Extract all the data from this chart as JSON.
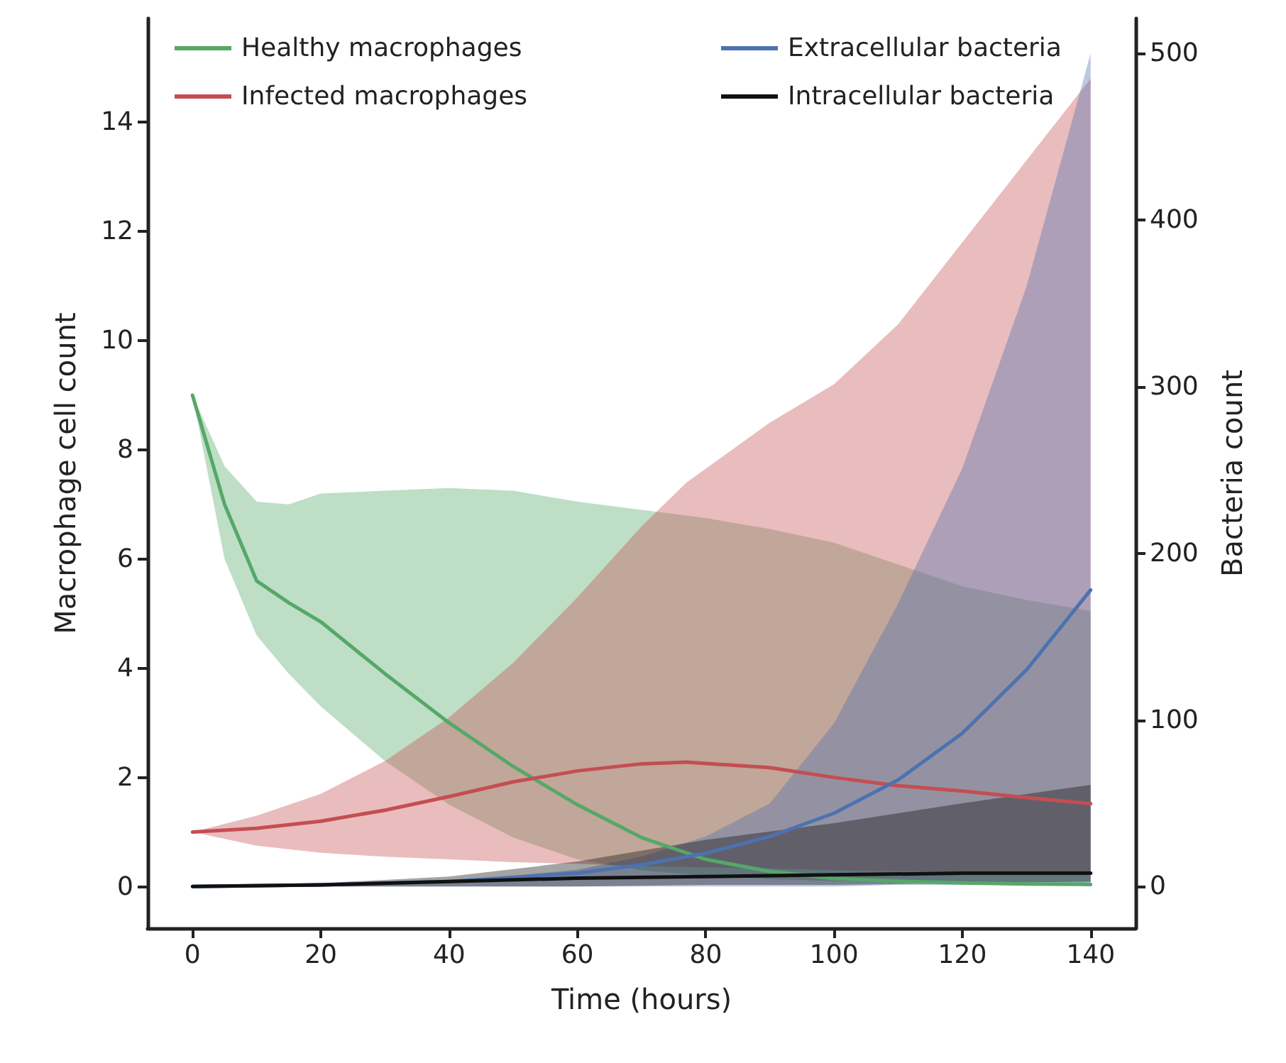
{
  "chart_data": {
    "type": "line",
    "xlabel": "Time (hours)",
    "ylabel": "Macrophage cell count",
    "y2label": "Bacteria count",
    "xlim": [
      -7,
      147
    ],
    "xticks": [
      0,
      20,
      40,
      60,
      80,
      100,
      120,
      140
    ],
    "ylim": [
      -0.76,
      15.9
    ],
    "yticks": [
      0,
      2,
      4,
      6,
      8,
      10,
      12,
      14
    ],
    "y2lim": [
      -25,
      521
    ],
    "y2ticks": [
      0,
      100,
      200,
      300,
      400,
      500
    ],
    "grid": false,
    "legend": "top",
    "marker": "none",
    "line_style": "solid",
    "series": [
      {
        "name": "Healthy macrophages",
        "color": "#55a868",
        "x": [
          0,
          5,
          10,
          15,
          20,
          30,
          40,
          50,
          60,
          70,
          80,
          90,
          100,
          110,
          120,
          130,
          140
        ],
        "values": [
          9.0,
          7.0,
          5.6,
          5.2,
          4.85,
          3.9,
          3.0,
          2.2,
          1.5,
          0.9,
          0.5,
          0.28,
          0.15,
          0.1,
          0.07,
          0.05,
          0.04
        ],
        "upper": [
          9.0,
          7.7,
          7.05,
          7.0,
          7.2,
          7.25,
          7.3,
          7.25,
          7.05,
          6.9,
          6.75,
          6.55,
          6.3,
          5.9,
          5.5,
          5.25,
          5.05
        ],
        "lower": [
          9.0,
          6.0,
          4.6,
          3.9,
          3.3,
          2.3,
          1.5,
          0.9,
          0.5,
          0.3,
          0.2,
          0.14,
          0.1,
          0.08,
          0.06,
          0.05,
          0.05
        ]
      },
      {
        "name": "Infected macrophages",
        "color": "#c44e52",
        "x": [
          0,
          10,
          20,
          30,
          40,
          50,
          60,
          70,
          77,
          90,
          100,
          110,
          120,
          130,
          140
        ],
        "values": [
          1.0,
          1.07,
          1.2,
          1.4,
          1.65,
          1.92,
          2.12,
          2.25,
          2.28,
          2.18,
          2.0,
          1.85,
          1.75,
          1.63,
          1.52
        ],
        "upper": [
          1.0,
          1.3,
          1.7,
          2.3,
          3.1,
          4.1,
          5.3,
          6.6,
          7.4,
          8.5,
          9.2,
          10.3,
          11.8,
          13.3,
          14.8
        ],
        "lower": [
          1.0,
          0.75,
          0.62,
          0.55,
          0.5,
          0.45,
          0.42,
          0.38,
          0.36,
          0.33,
          0.3,
          0.28,
          0.27,
          0.26,
          0.25
        ]
      },
      {
        "name": "Extracellular bacteria",
        "color": "#4c72b0",
        "axis": "y2",
        "x": [
          0,
          20,
          40,
          60,
          70,
          80,
          90,
          100,
          110,
          120,
          130,
          140
        ],
        "values": [
          0,
          1,
          3,
          8,
          13,
          20,
          30,
          44,
          64,
          92,
          130,
          178
        ],
        "upper": [
          0,
          1,
          3,
          10,
          18,
          30,
          50,
          98,
          170,
          251,
          360,
          500
        ],
        "lower": [
          0,
          0,
          0,
          0,
          0,
          0,
          0,
          0,
          1,
          1,
          1,
          2
        ]
      },
      {
        "name": "Intracellular bacteria",
        "color": "#111111",
        "axis": "y2",
        "x": [
          0,
          20,
          40,
          60,
          80,
          100,
          120,
          140
        ],
        "values": [
          0,
          1,
          3,
          5,
          6,
          7,
          8,
          8
        ],
        "upper": [
          0,
          2,
          6,
          15,
          28,
          38,
          50,
          61
        ],
        "lower": [
          0,
          0,
          0,
          0,
          1,
          1,
          2,
          3
        ]
      }
    ]
  }
}
